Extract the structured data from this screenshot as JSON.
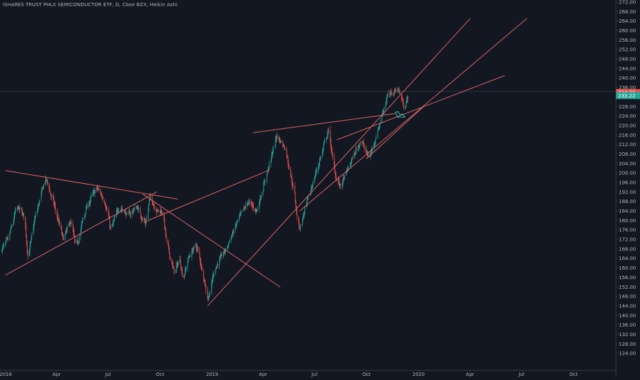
{
  "chart_data": {
    "type": "candlestick",
    "title": "ISHARES TRUST PHLX SEMICONDUCTOR ETF, D, Cboe BZX, Heikin Ashi",
    "ylim": [
      120,
      272
    ],
    "y_ticks": [
      124,
      128,
      132,
      136,
      140,
      144,
      148,
      152,
      156,
      160,
      164,
      168,
      172,
      176,
      180,
      184,
      188,
      192,
      196,
      200,
      204,
      208,
      212,
      216,
      220,
      224,
      228,
      232,
      236,
      240,
      244,
      248,
      252,
      256,
      260,
      264,
      268,
      272
    ],
    "x_ticks": [
      {
        "label": "2018",
        "date": "2018-01-01"
      },
      {
        "label": "Apr",
        "date": "2018-04-01"
      },
      {
        "label": "Jul",
        "date": "2018-07-01"
      },
      {
        "label": "Oct",
        "date": "2018-10-01"
      },
      {
        "label": "2019",
        "date": "2019-01-01"
      },
      {
        "label": "Apr",
        "date": "2019-04-01"
      },
      {
        "label": "Jul",
        "date": "2019-07-01"
      },
      {
        "label": "Oct",
        "date": "2019-10-01"
      },
      {
        "label": "2020",
        "date": "2020-01-01"
      },
      {
        "label": "Apr",
        "date": "2020-04-01"
      },
      {
        "label": "Jul",
        "date": "2020-07-01"
      },
      {
        "label": "Oct",
        "date": "2020-10-01"
      }
    ],
    "x_range": [
      "2017-12-22",
      "2020-12-15"
    ],
    "price_labels": [
      {
        "value": "234.39",
        "price": 233.9,
        "color": "#ef5350"
      },
      {
        "value": "233.22",
        "price": 232.6,
        "color": "#26a69a"
      }
    ],
    "horizontal_line": 234.4,
    "colors": {
      "up": "#26a69a",
      "down": "#ef5350",
      "trendline": "#e06666",
      "background": "#131722",
      "axis_text": "#b2b5be",
      "grid": "#363a45"
    },
    "path_points": [
      {
        "date": "2017-12-22",
        "price": 167
      },
      {
        "date": "2018-01-05",
        "price": 172
      },
      {
        "date": "2018-01-20",
        "price": 186
      },
      {
        "date": "2018-02-02",
        "price": 182
      },
      {
        "date": "2018-02-09",
        "price": 164
      },
      {
        "date": "2018-02-20",
        "price": 180
      },
      {
        "date": "2018-03-05",
        "price": 192
      },
      {
        "date": "2018-03-12",
        "price": 198
      },
      {
        "date": "2018-03-25",
        "price": 188
      },
      {
        "date": "2018-04-12",
        "price": 172
      },
      {
        "date": "2018-04-25",
        "price": 180
      },
      {
        "date": "2018-05-05",
        "price": 168
      },
      {
        "date": "2018-05-20",
        "price": 184
      },
      {
        "date": "2018-06-10",
        "price": 194
      },
      {
        "date": "2018-06-25",
        "price": 188
      },
      {
        "date": "2018-07-05",
        "price": 176
      },
      {
        "date": "2018-07-20",
        "price": 186
      },
      {
        "date": "2018-08-05",
        "price": 182
      },
      {
        "date": "2018-08-20",
        "price": 186
      },
      {
        "date": "2018-09-05",
        "price": 178
      },
      {
        "date": "2018-09-12",
        "price": 190
      },
      {
        "date": "2018-09-25",
        "price": 184
      },
      {
        "date": "2018-10-05",
        "price": 184
      },
      {
        "date": "2018-10-12",
        "price": 170
      },
      {
        "date": "2018-10-25",
        "price": 158
      },
      {
        "date": "2018-11-05",
        "price": 164
      },
      {
        "date": "2018-11-10",
        "price": 154
      },
      {
        "date": "2018-11-18",
        "price": 164
      },
      {
        "date": "2018-12-03",
        "price": 170
      },
      {
        "date": "2018-12-15",
        "price": 158
      },
      {
        "date": "2018-12-24",
        "price": 146
      },
      {
        "date": "2019-01-05",
        "price": 160
      },
      {
        "date": "2019-01-25",
        "price": 168
      },
      {
        "date": "2019-02-15",
        "price": 180
      },
      {
        "date": "2019-03-05",
        "price": 188
      },
      {
        "date": "2019-03-20",
        "price": 184
      },
      {
        "date": "2019-04-05",
        "price": 198
      },
      {
        "date": "2019-04-25",
        "price": 216
      },
      {
        "date": "2019-05-10",
        "price": 210
      },
      {
        "date": "2019-05-25",
        "price": 192
      },
      {
        "date": "2019-06-03",
        "price": 176
      },
      {
        "date": "2019-06-20",
        "price": 190
      },
      {
        "date": "2019-07-10",
        "price": 206
      },
      {
        "date": "2019-07-25",
        "price": 218
      },
      {
        "date": "2019-08-05",
        "price": 200
      },
      {
        "date": "2019-08-15",
        "price": 194
      },
      {
        "date": "2019-09-05",
        "price": 206
      },
      {
        "date": "2019-09-20",
        "price": 214
      },
      {
        "date": "2019-10-05",
        "price": 206
      },
      {
        "date": "2019-10-20",
        "price": 218
      },
      {
        "date": "2019-11-05",
        "price": 232
      },
      {
        "date": "2019-11-25",
        "price": 236
      },
      {
        "date": "2019-12-05",
        "price": 228
      },
      {
        "date": "2019-12-15",
        "price": 233
      }
    ],
    "trendlines": [
      {
        "from": {
          "date": "2018-01-01",
          "price": 201
        },
        "to": {
          "date": "2018-11-01",
          "price": 189
        }
      },
      {
        "from": {
          "date": "2018-01-01",
          "price": 157
        },
        "to": {
          "date": "2018-09-25",
          "price": 192
        }
      },
      {
        "from": {
          "date": "2018-09-01",
          "price": 191
        },
        "to": {
          "date": "2019-05-01",
          "price": 152
        }
      },
      {
        "from": {
          "date": "2018-09-10",
          "price": 180
        },
        "to": {
          "date": "2019-04-10",
          "price": 201
        }
      },
      {
        "from": {
          "date": "2018-12-24",
          "price": 144
        },
        "to": {
          "date": "2020-04-01",
          "price": 265
        }
      },
      {
        "from": {
          "date": "2019-03-15",
          "price": 217
        },
        "to": {
          "date": "2019-11-20",
          "price": 225
        }
      },
      {
        "from": {
          "date": "2019-06-05",
          "price": 184
        },
        "to": {
          "date": "2020-07-10",
          "price": 265
        }
      },
      {
        "from": {
          "date": "2019-08-10",
          "price": 214
        },
        "to": {
          "date": "2020-06-01",
          "price": 241
        }
      },
      {
        "from": {
          "date": "2019-10-01",
          "price": 206
        },
        "to": {
          "date": "2020-01-10",
          "price": 228
        }
      }
    ],
    "marker": {
      "date": "2019-11-27",
      "price": 225,
      "color": "#26a69a"
    }
  }
}
